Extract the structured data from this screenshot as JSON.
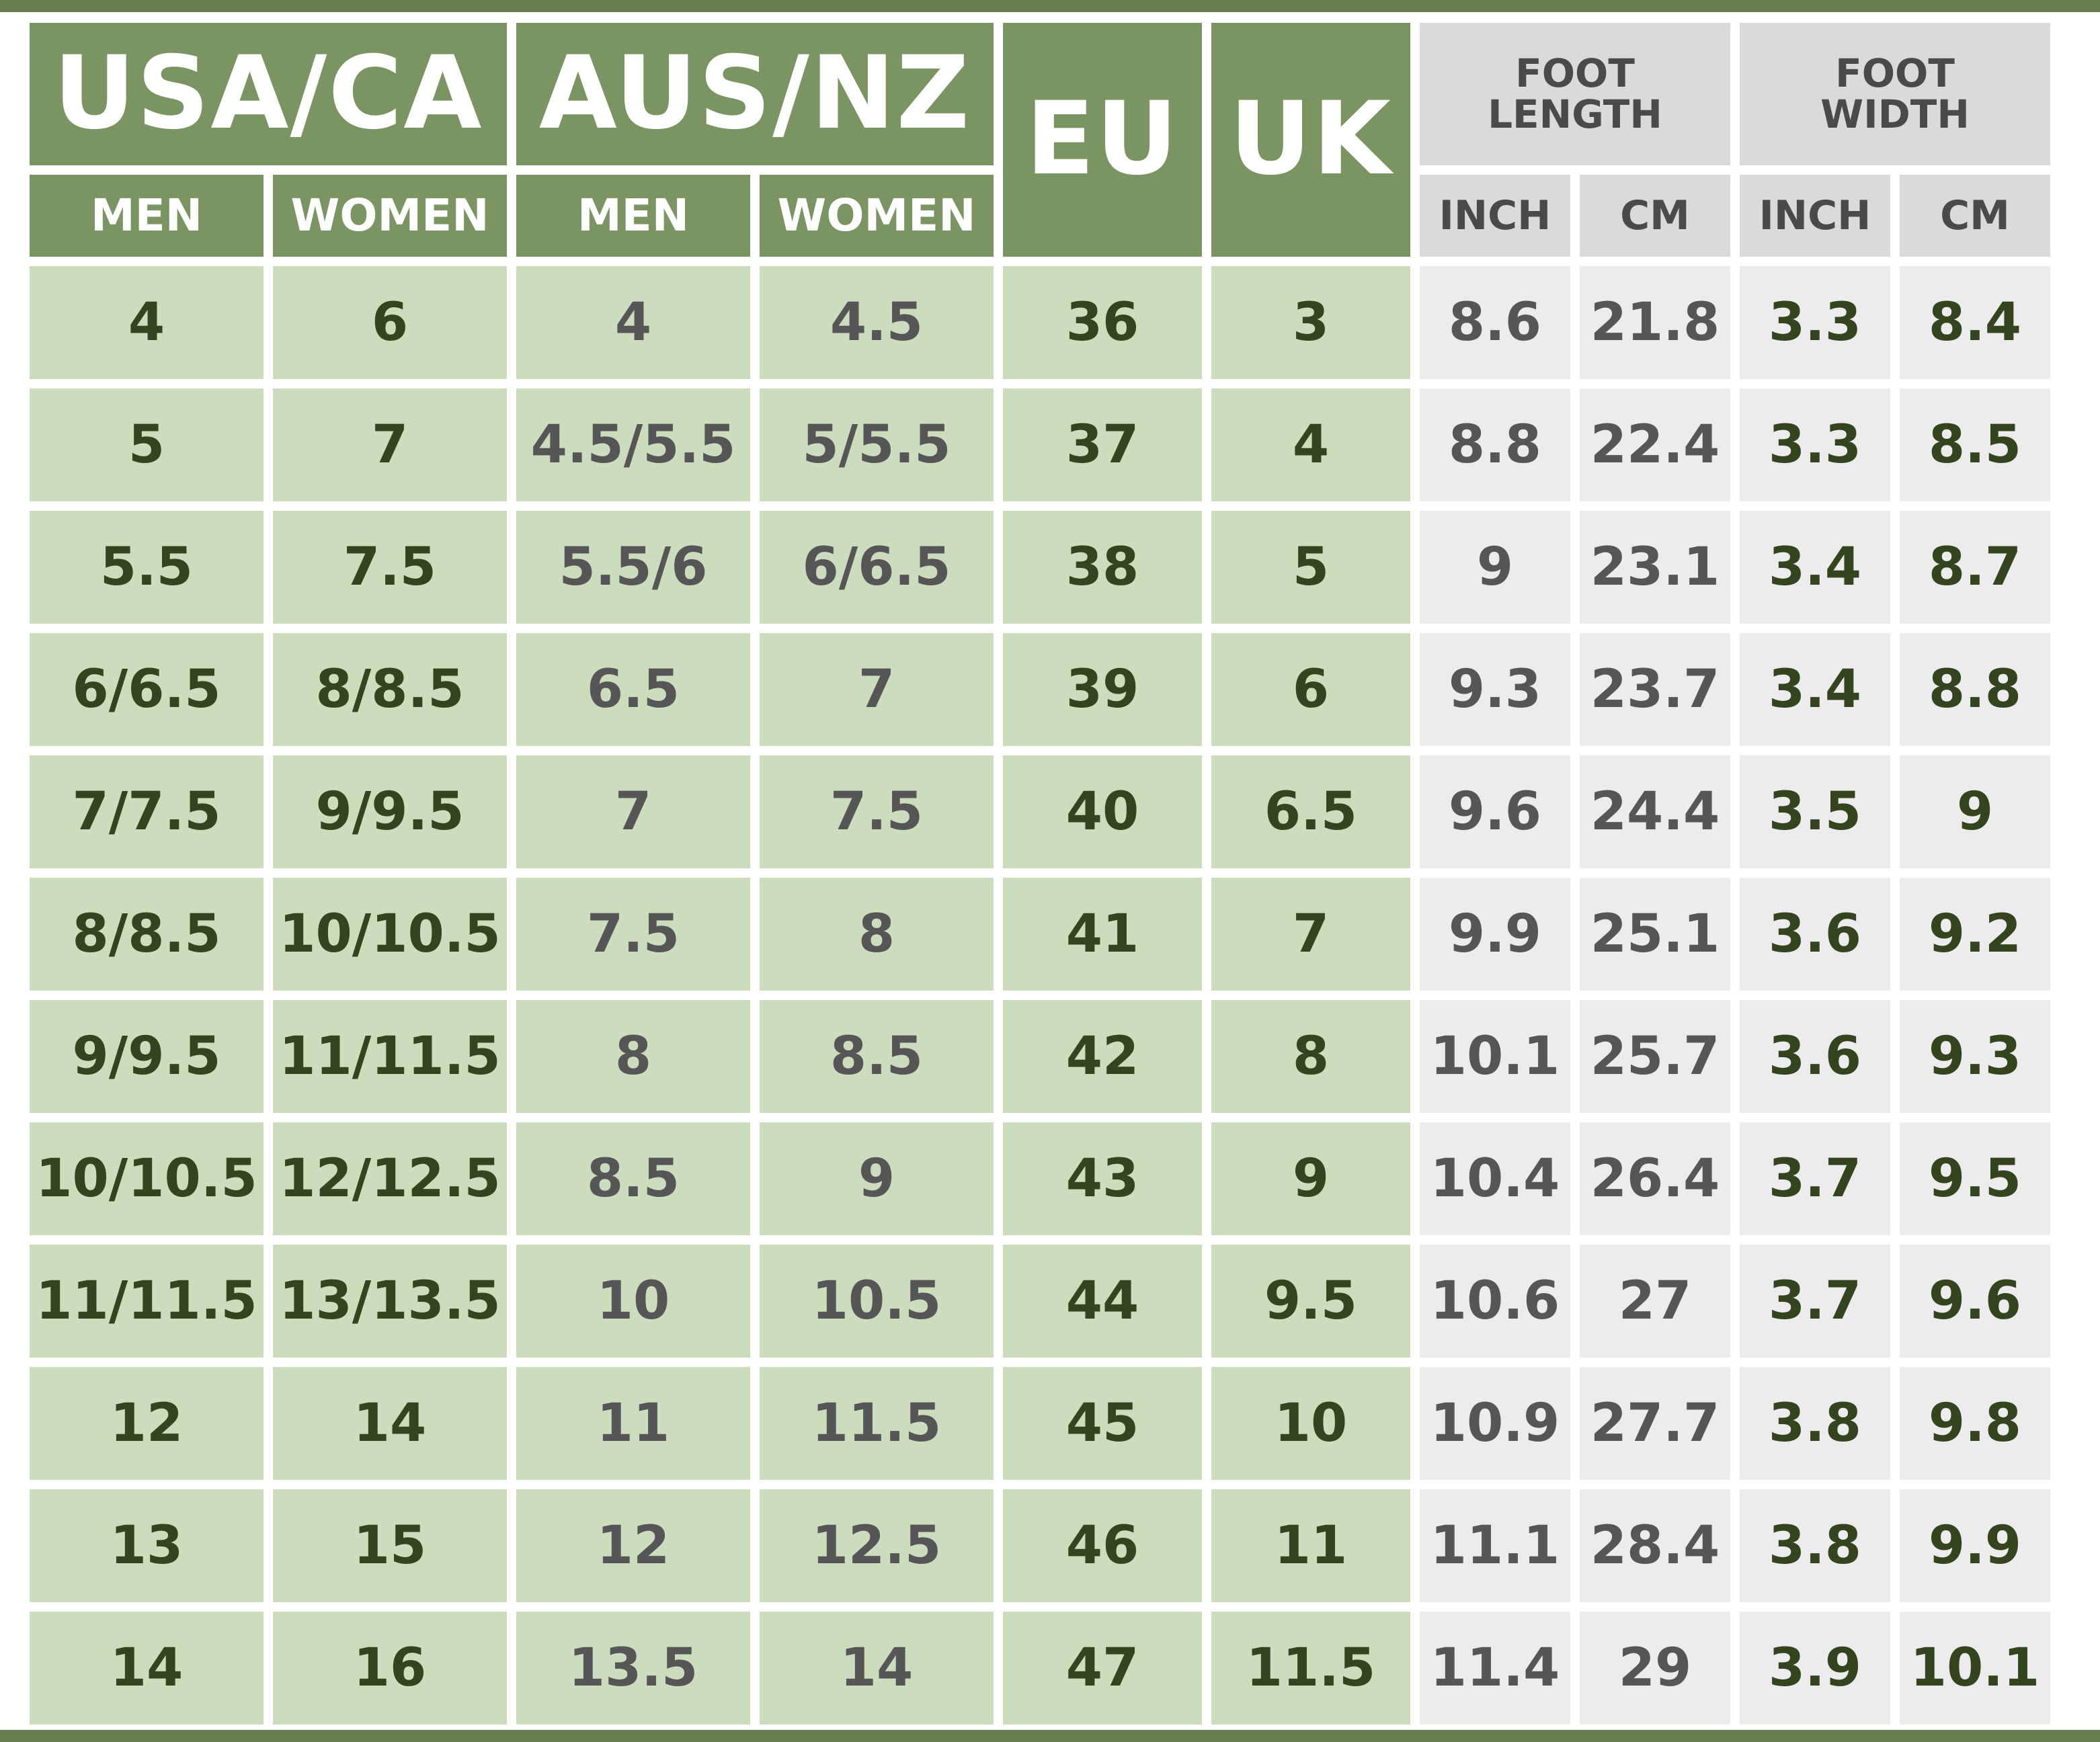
{
  "colors": {
    "header_green": "#7a9462",
    "band_green": "#667e4e",
    "cell_green": "#cbddbd",
    "header_gray": "#dadada",
    "cell_gray": "#ececec",
    "text_dark_green": "#33441f",
    "text_gray": "#565656"
  },
  "headers": {
    "usa_ca": "USA/CA",
    "aus_nz": "AUS/NZ",
    "eu": "EU",
    "uk": "UK",
    "foot_length": "FOOT\nLENGTH",
    "foot_width": "FOOT\nWIDTH",
    "usa_men": "MEN",
    "usa_women": "WOMEN",
    "aus_men": "MEN",
    "aus_women": "WOMEN",
    "length_inch": "INCH",
    "length_cm": "CM",
    "width_inch": "INCH",
    "width_cm": "CM"
  },
  "rows": [
    {
      "usa_men": "4",
      "usa_women": "6",
      "aus_men": "4",
      "aus_women": "4.5",
      "eu": "36",
      "uk": "3",
      "length_inch": "8.6",
      "length_cm": "21.8",
      "width_inch": "3.3",
      "width_cm": "8.4"
    },
    {
      "usa_men": "5",
      "usa_women": "7",
      "aus_men": "4.5/5.5",
      "aus_women": "5/5.5",
      "eu": "37",
      "uk": "4",
      "length_inch": "8.8",
      "length_cm": "22.4",
      "width_inch": "3.3",
      "width_cm": "8.5"
    },
    {
      "usa_men": "5.5",
      "usa_women": "7.5",
      "aus_men": "5.5/6",
      "aus_women": "6/6.5",
      "eu": "38",
      "uk": "5",
      "length_inch": "9",
      "length_cm": "23.1",
      "width_inch": "3.4",
      "width_cm": "8.7"
    },
    {
      "usa_men": "6/6.5",
      "usa_women": "8/8.5",
      "aus_men": "6.5",
      "aus_women": "7",
      "eu": "39",
      "uk": "6",
      "length_inch": "9.3",
      "length_cm": "23.7",
      "width_inch": "3.4",
      "width_cm": "8.8"
    },
    {
      "usa_men": "7/7.5",
      "usa_women": "9/9.5",
      "aus_men": "7",
      "aus_women": "7.5",
      "eu": "40",
      "uk": "6.5",
      "length_inch": "9.6",
      "length_cm": "24.4",
      "width_inch": "3.5",
      "width_cm": "9"
    },
    {
      "usa_men": "8/8.5",
      "usa_women": "10/10.5",
      "aus_men": "7.5",
      "aus_women": "8",
      "eu": "41",
      "uk": "7",
      "length_inch": "9.9",
      "length_cm": "25.1",
      "width_inch": "3.6",
      "width_cm": "9.2"
    },
    {
      "usa_men": "9/9.5",
      "usa_women": "11/11.5",
      "aus_men": "8",
      "aus_women": "8.5",
      "eu": "42",
      "uk": "8",
      "length_inch": "10.1",
      "length_cm": "25.7",
      "width_inch": "3.6",
      "width_cm": "9.3"
    },
    {
      "usa_men": "10/10.5",
      "usa_women": "12/12.5",
      "aus_men": "8.5",
      "aus_women": "9",
      "eu": "43",
      "uk": "9",
      "length_inch": "10.4",
      "length_cm": "26.4",
      "width_inch": "3.7",
      "width_cm": "9.5"
    },
    {
      "usa_men": "11/11.5",
      "usa_women": "13/13.5",
      "aus_men": "10",
      "aus_women": "10.5",
      "eu": "44",
      "uk": "9.5",
      "length_inch": "10.6",
      "length_cm": "27",
      "width_inch": "3.7",
      "width_cm": "9.6"
    },
    {
      "usa_men": "12",
      "usa_women": "14",
      "aus_men": "11",
      "aus_women": "11.5",
      "eu": "45",
      "uk": "10",
      "length_inch": "10.9",
      "length_cm": "27.7",
      "width_inch": "3.8",
      "width_cm": "9.8"
    },
    {
      "usa_men": "13",
      "usa_women": "15",
      "aus_men": "12",
      "aus_women": "12.5",
      "eu": "46",
      "uk": "11",
      "length_inch": "11.1",
      "length_cm": "28.4",
      "width_inch": "3.8",
      "width_cm": "9.9"
    },
    {
      "usa_men": "14",
      "usa_women": "16",
      "aus_men": "13.5",
      "aus_women": "14",
      "eu": "47",
      "uk": "11.5",
      "length_inch": "11.4",
      "length_cm": "29",
      "width_inch": "3.9",
      "width_cm": "10.1"
    }
  ]
}
